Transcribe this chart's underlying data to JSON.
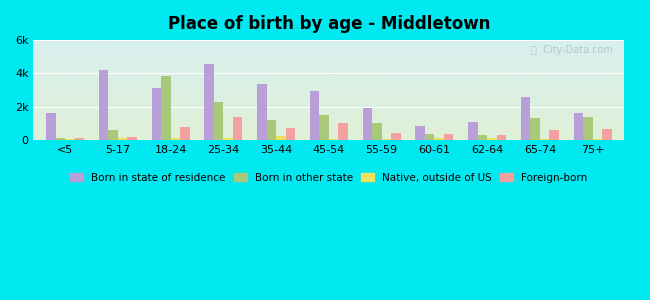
{
  "title": "Place of birth by age - Middletown",
  "categories": [
    "<5",
    "5-17",
    "18-24",
    "25-34",
    "35-44",
    "45-54",
    "55-59",
    "60-61",
    "62-64",
    "65-74",
    "75+"
  ],
  "series": {
    "Born in state of residence": [
      1650,
      4200,
      3100,
      4550,
      3350,
      2950,
      1950,
      850,
      1100,
      2600,
      1650
    ],
    "Born in other state": [
      100,
      600,
      3850,
      2300,
      1200,
      1500,
      1050,
      350,
      300,
      1350,
      1400
    ],
    "Native, outside of US": [
      50,
      150,
      100,
      100,
      250,
      50,
      50,
      150,
      100,
      50,
      50
    ],
    "Foreign-born": [
      100,
      200,
      800,
      1400,
      700,
      1050,
      400,
      350,
      300,
      600,
      650
    ]
  },
  "colors": {
    "Born in state of residence": "#b89fd8",
    "Born in other state": "#a8c87a",
    "Native, outside of US": "#f0e060",
    "Foreign-born": "#f4a0a0"
  },
  "ylim": [
    0,
    6000
  ],
  "yticks": [
    0,
    2000,
    4000,
    6000
  ],
  "ytick_labels": [
    "0",
    "2k",
    "4k",
    "6k"
  ],
  "bg_top": "#d8f0ee",
  "bg_bottom": "#e0f0d8",
  "outer_background": "#00e8f0",
  "bar_width": 0.18
}
